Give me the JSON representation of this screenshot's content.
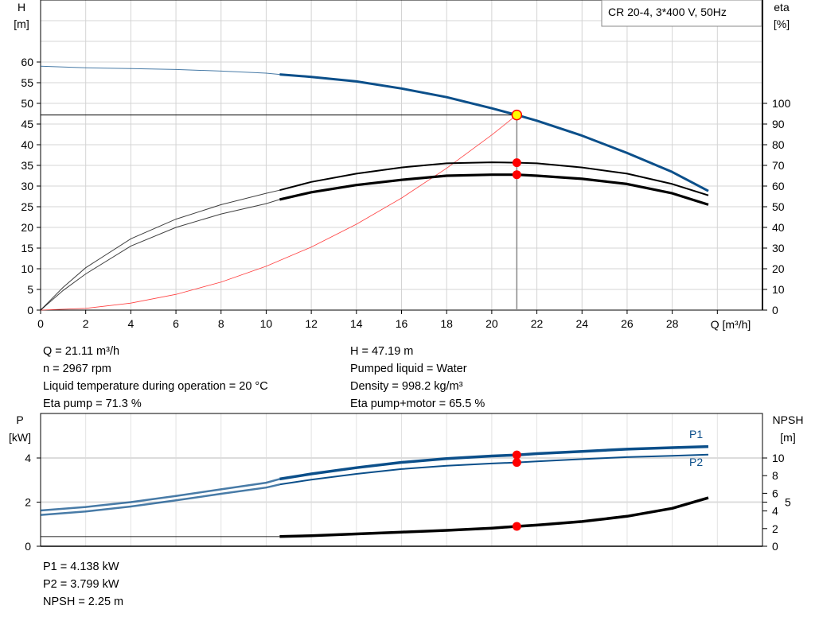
{
  "legend_box": "CR 20-4, 3*400 V, 50Hz",
  "info_top": {
    "left": [
      "Q = 21.11 m³/h",
      "n = 2967 rpm",
      "Liquid temperature during operation = 20 °C",
      "Eta pump = 71.3 %"
    ],
    "right": [
      "H = 47.19 m",
      "Pumped liquid = Water",
      "Density = 998.2 kg/m³",
      "Eta pump+motor = 65.5 %"
    ]
  },
  "info_bottom": [
    "P1 = 4.138 kW",
    "P2 = 3.799 kW",
    "NPSH = 2.25 m"
  ],
  "colors": {
    "head": "#0b4f8a",
    "power": "#0b4f8a",
    "eta": "#000000",
    "system": "#ff4040",
    "marker": "#ff0000",
    "op_point": "#ffff00"
  },
  "chart_data": [
    {
      "type": "line",
      "xlabel": "Q [m³/h]",
      "ylabel_left": [
        "H",
        "[m]"
      ],
      "ylabel_right": [
        "eta",
        "[%]"
      ],
      "xlim": [
        0,
        32
      ],
      "ylim_left": [
        0,
        75
      ],
      "ylim_right": [
        0,
        144
      ],
      "xticks": [
        "0",
        "2",
        "4",
        "6",
        "8",
        "10",
        "12",
        "14",
        "16",
        "18",
        "20",
        "22",
        "24",
        "26",
        "28"
      ],
      "yticks_left": [
        "0",
        "5",
        "10",
        "15",
        "20",
        "25",
        "30",
        "35",
        "40",
        "45",
        "50",
        "55",
        "60"
      ],
      "yticks_right": [
        "0",
        "10",
        "20",
        "30",
        "40",
        "50",
        "60",
        "70",
        "80",
        "90",
        "100"
      ],
      "grid": true,
      "operating_point": {
        "Q": 21.11,
        "H": 47.19,
        "eta_pump": 71.3,
        "eta_pump_motor": 65.5
      },
      "series": [
        {
          "key": "head",
          "axis": "left",
          "x": [
            0,
            2,
            4,
            6,
            8,
            10,
            10.6,
            12,
            14,
            16,
            18,
            20,
            21.11,
            22,
            24,
            26,
            28,
            29.6
          ],
          "y": [
            59,
            58.6,
            58.4,
            58.2,
            57.8,
            57.3,
            57,
            56.4,
            55.3,
            53.6,
            51.5,
            48.8,
            47.19,
            45.8,
            42.2,
            38,
            33.4,
            28.8
          ]
        },
        {
          "key": "eta_pump",
          "axis": "right",
          "x": [
            0,
            1,
            2,
            4,
            6,
            8,
            10,
            10.6,
            12,
            14,
            16,
            18,
            20,
            21.11,
            22,
            24,
            26,
            28,
            29.6
          ],
          "y": [
            0,
            11,
            20.5,
            34.5,
            44,
            51,
            56.5,
            58,
            62,
            66,
            69,
            71,
            71.5,
            71.3,
            71,
            69,
            66,
            61,
            55.5
          ]
        },
        {
          "key": "eta_pump_motor",
          "axis": "right",
          "x": [
            0,
            1,
            2,
            4,
            6,
            8,
            10,
            10.6,
            12,
            14,
            16,
            18,
            20,
            21.11,
            22,
            24,
            26,
            28,
            29.6
          ],
          "y": [
            0,
            9.5,
            17.5,
            31,
            40,
            46.5,
            51.5,
            53.5,
            57,
            60.5,
            63,
            65,
            65.5,
            65.5,
            65,
            63.5,
            61,
            56.5,
            51
          ]
        },
        {
          "key": "system",
          "axis": "left",
          "x": [
            0,
            2,
            4,
            6,
            8,
            10,
            12,
            14,
            16,
            18,
            20,
            21.11
          ],
          "y": [
            0,
            0.42,
            1.69,
            3.81,
            6.78,
            10.6,
            15.25,
            20.76,
            27.1,
            34.3,
            42.36,
            47.19
          ]
        }
      ]
    },
    {
      "type": "line",
      "xlim": [
        0,
        32
      ],
      "ylim_left": [
        0,
        6
      ],
      "ylim_right": [
        0,
        15
      ],
      "ylabel_left": [
        "P",
        "[kW]"
      ],
      "ylabel_right": [
        "NPSH",
        "[m]"
      ],
      "yticks_left": [
        "0",
        "2",
        "4"
      ],
      "yticks_right": [
        "0",
        "2",
        "4",
        "5",
        "6",
        "8",
        "10"
      ],
      "grid": true,
      "series": [
        {
          "key": "P1",
          "name": "P1",
          "axis": "left",
          "x": [
            0,
            2,
            4,
            6,
            8,
            10,
            10.6,
            12,
            14,
            16,
            18,
            20,
            21.11,
            22,
            24,
            26,
            28,
            29.6
          ],
          "y": [
            1.62,
            1.78,
            2.0,
            2.28,
            2.58,
            2.88,
            3.05,
            3.28,
            3.56,
            3.8,
            3.97,
            4.09,
            4.138,
            4.2,
            4.3,
            4.4,
            4.47,
            4.52
          ]
        },
        {
          "key": "P2",
          "name": "P2",
          "axis": "left",
          "x": [
            0,
            2,
            4,
            6,
            8,
            10,
            10.6,
            12,
            14,
            16,
            18,
            20,
            21.11,
            22,
            24,
            26,
            28,
            29.6
          ],
          "y": [
            1.42,
            1.58,
            1.8,
            2.08,
            2.38,
            2.66,
            2.8,
            3.02,
            3.28,
            3.5,
            3.65,
            3.75,
            3.799,
            3.85,
            3.95,
            4.04,
            4.1,
            4.15
          ]
        },
        {
          "key": "NPSH",
          "axis": "right",
          "x": [
            0,
            10.6,
            12,
            14,
            16,
            18,
            20,
            21.11,
            22,
            24,
            26,
            28,
            29.6
          ],
          "y": [
            1.1,
            1.1,
            1.2,
            1.4,
            1.6,
            1.8,
            2.05,
            2.25,
            2.4,
            2.8,
            3.4,
            4.3,
            5.5
          ]
        }
      ]
    }
  ]
}
